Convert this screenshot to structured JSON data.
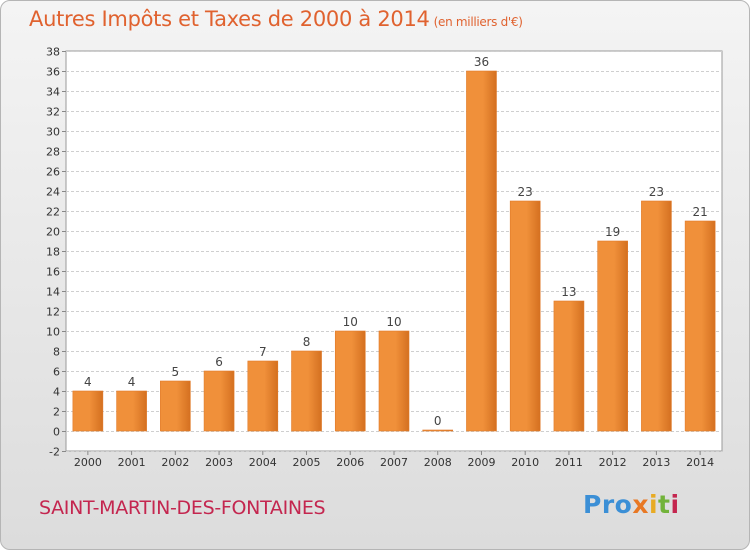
{
  "title": "Autres Impôts et Taxes de 2000 à 2014",
  "subtitle": "(en milliers d'€)",
  "commune": "SAINT-MARTIN-DES-FONTAINES",
  "logo": {
    "p1": "Pro",
    "p2": "x",
    "p3": "i",
    "p4": "t",
    "p5": "i"
  },
  "colors": {
    "bar": "#f0903a",
    "bar_dark": "#d47020",
    "title": "#e0622f",
    "commune": "#c4264f"
  },
  "chart_data": {
    "type": "bar",
    "title": "Autres Impôts et Taxes de 2000 à 2014",
    "subtitle": "(en milliers d'€)",
    "categories": [
      "2000",
      "2001",
      "2002",
      "2003",
      "2004",
      "2005",
      "2006",
      "2007",
      "2008",
      "2009",
      "2010",
      "2011",
      "2012",
      "2013",
      "2014"
    ],
    "values": [
      4,
      4,
      5,
      6,
      7,
      8,
      10,
      10,
      0,
      36,
      23,
      13,
      19,
      23,
      21
    ],
    "ylim": [
      -2,
      38
    ],
    "yticks": [
      -2,
      0,
      2,
      4,
      6,
      8,
      10,
      12,
      14,
      16,
      18,
      20,
      22,
      24,
      26,
      28,
      30,
      32,
      34,
      36,
      38
    ],
    "grid": true,
    "legend": "none"
  }
}
